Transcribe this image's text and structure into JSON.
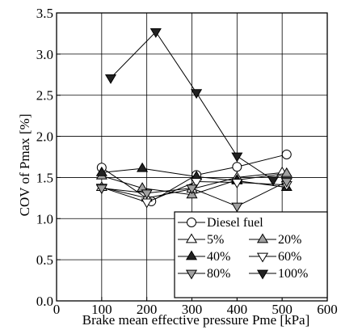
{
  "chart_data": {
    "type": "line",
    "title": "",
    "xlabel": "Brake mean effective pressure Pme [kPa]",
    "ylabel": "COV of Pmax [%]",
    "xlim": [
      0,
      600
    ],
    "ylim": [
      0.0,
      3.5
    ],
    "x_ticks": [
      0,
      100,
      200,
      300,
      400,
      500,
      600
    ],
    "y_ticks": [
      0.0,
      0.5,
      1.0,
      1.5,
      2.0,
      2.5,
      3.0,
      3.5
    ],
    "y_tick_labels": [
      "0.0",
      "0.5",
      "1.0",
      "1.5",
      "2.0",
      "2.5",
      "3.0",
      "3.5"
    ],
    "grid": true,
    "legend_position": "bottom-right",
    "series": [
      {
        "name": "Diesel fuel",
        "marker": "circle",
        "fill": "#ffffff",
        "x": [
          100,
          210,
          310,
          400,
          510
        ],
        "y": [
          1.62,
          1.21,
          1.53,
          1.63,
          1.78
        ]
      },
      {
        "name": "5%",
        "marker": "triangle-up",
        "fill": "#ffffff",
        "x": [
          100,
          200,
          300,
          400,
          500
        ],
        "y": [
          1.38,
          1.25,
          1.36,
          1.5,
          1.56
        ]
      },
      {
        "name": "20%",
        "marker": "triangle-up",
        "fill": "#a0a0a0",
        "x": [
          100,
          190,
          300,
          400,
          510
        ],
        "y": [
          1.52,
          1.37,
          1.29,
          1.47,
          1.55
        ]
      },
      {
        "name": "40%",
        "marker": "triangle-up",
        "fill": "#222222",
        "x": [
          100,
          190,
          310,
          400,
          510
        ],
        "y": [
          1.56,
          1.61,
          1.51,
          1.46,
          1.38
        ]
      },
      {
        "name": "60%",
        "marker": "triangle-down",
        "fill": "#ffffff",
        "x": [
          100,
          200,
          310,
          400,
          510
        ],
        "y": [
          1.38,
          1.2,
          1.45,
          1.44,
          1.41
        ]
      },
      {
        "name": "80%",
        "marker": "triangle-down",
        "fill": "#a0a0a0",
        "x": [
          100,
          200,
          300,
          400,
          510
        ],
        "y": [
          1.37,
          1.31,
          1.37,
          1.15,
          1.45
        ]
      },
      {
        "name": "100%",
        "marker": "triangle-down",
        "fill": "#222222",
        "x": [
          120,
          220,
          310,
          400,
          480
        ],
        "y": [
          2.71,
          3.27,
          2.53,
          1.76,
          1.47
        ]
      }
    ]
  }
}
